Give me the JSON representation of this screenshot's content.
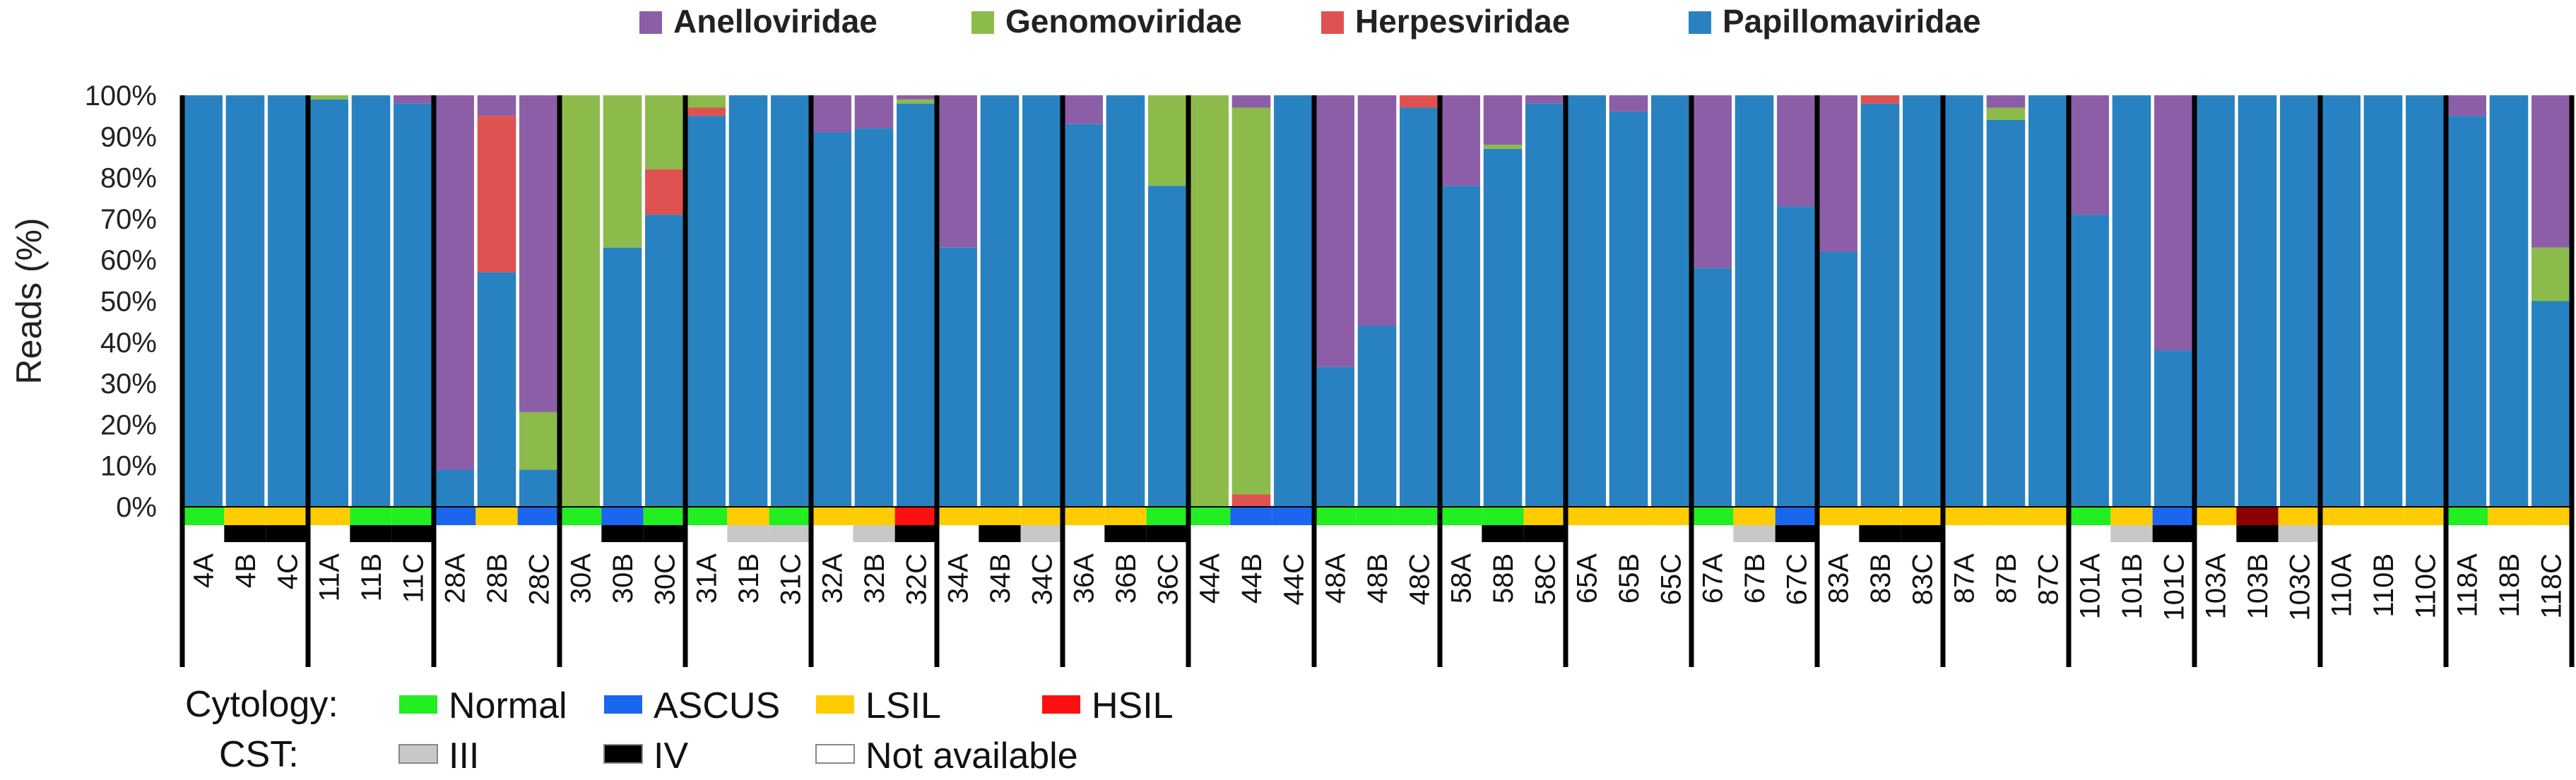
{
  "chart_data": {
    "type": "bar",
    "stacked": true,
    "ylabel": "Reads (%)",
    "ylim": [
      0,
      100
    ],
    "yticks": [
      "0%",
      "10%",
      "20%",
      "30%",
      "40%",
      "50%",
      "60%",
      "70%",
      "80%",
      "90%",
      "100%"
    ],
    "legend": [
      {
        "name": "Anelloviridae",
        "color": "#8d5ea8"
      },
      {
        "name": "Genomoviridae",
        "color": "#8cbb4c"
      },
      {
        "name": "Herpesviridae",
        "color": "#e05252"
      },
      {
        "name": "Papillomaviridae",
        "color": "#2882c1"
      }
    ],
    "categories": [
      "4A",
      "4B",
      "4C",
      "11A",
      "11B",
      "11C",
      "28A",
      "28B",
      "28C",
      "30A",
      "30B",
      "30C",
      "31A",
      "31B",
      "31C",
      "32A",
      "32B",
      "32C",
      "34A",
      "34B",
      "34C",
      "36A",
      "36B",
      "36C",
      "44A",
      "44B",
      "44C",
      "48A",
      "48B",
      "48C",
      "58A",
      "58B",
      "58C",
      "65A",
      "65B",
      "65C",
      "67A",
      "67B",
      "67C",
      "83A",
      "83B",
      "83C",
      "87A",
      "87B",
      "87C",
      "101A",
      "101B",
      "101C",
      "103A",
      "103B",
      "103C",
      "110A",
      "110B",
      "110C",
      "118A",
      "118B",
      "118C"
    ],
    "groups": [
      [
        "4A",
        "4B",
        "4C"
      ],
      [
        "11A",
        "11B",
        "11C"
      ],
      [
        "28A",
        "28B",
        "28C"
      ],
      [
        "30A",
        "30B",
        "30C"
      ],
      [
        "31A",
        "31B",
        "31C"
      ],
      [
        "32A",
        "32B",
        "32C"
      ],
      [
        "34A",
        "34B",
        "34C"
      ],
      [
        "36A",
        "36B",
        "36C"
      ],
      [
        "44A",
        "44B",
        "44C"
      ],
      [
        "48A",
        "48B",
        "48C"
      ],
      [
        "58A",
        "58B",
        "58C"
      ],
      [
        "65A",
        "65B",
        "65C"
      ],
      [
        "67A",
        "67B",
        "67C"
      ],
      [
        "83A",
        "83B",
        "83C"
      ],
      [
        "87A",
        "87B",
        "87C"
      ],
      [
        "101A",
        "101B",
        "101C"
      ],
      [
        "103A",
        "103B",
        "103C"
      ],
      [
        "110A",
        "110B",
        "110C"
      ],
      [
        "118A",
        "118B",
        "118C"
      ]
    ],
    "series": [
      {
        "name": "Papillomaviridae",
        "values": [
          100,
          100,
          100,
          99,
          100,
          98,
          9,
          57,
          9,
          0,
          63,
          71,
          95,
          100,
          100,
          91,
          92,
          98,
          63,
          100,
          100,
          93,
          100,
          78,
          0,
          0,
          100,
          34,
          44,
          97,
          78,
          87,
          98,
          100,
          96,
          100,
          58,
          100,
          73,
          62,
          98,
          100,
          100,
          94,
          100,
          71,
          100,
          38,
          100,
          100,
          100,
          100,
          100,
          100,
          95,
          100,
          50
        ]
      },
      {
        "name": "Herpesviridae",
        "values": [
          0,
          0,
          0,
          0,
          0,
          0,
          0,
          38,
          0,
          0,
          0,
          11,
          2,
          0,
          0,
          0,
          0,
          0,
          0,
          0,
          0,
          0,
          0,
          0,
          0,
          3,
          0,
          0,
          0,
          3,
          0,
          0,
          0,
          0,
          0,
          0,
          0,
          0,
          0,
          0,
          2,
          0,
          0,
          0,
          0,
          0,
          0,
          0,
          0,
          0,
          0,
          0,
          0,
          0,
          0,
          0,
          0
        ]
      },
      {
        "name": "Genomoviridae",
        "values": [
          0,
          0,
          0,
          1,
          0,
          0,
          0,
          0,
          14,
          100,
          37,
          18,
          3,
          0,
          0,
          0,
          0,
          1,
          0,
          0,
          0,
          0,
          0,
          22,
          100,
          94,
          0,
          0,
          0,
          0,
          0,
          1,
          0,
          0,
          0,
          0,
          0,
          0,
          0,
          0,
          0,
          0,
          0,
          3,
          0,
          0,
          0,
          0,
          0,
          0,
          0,
          0,
          0,
          0,
          0,
          0,
          13
        ]
      },
      {
        "name": "Anelloviridae",
        "values": [
          0,
          0,
          0,
          0,
          0,
          2,
          91,
          5,
          77,
          0,
          0,
          0,
          0,
          0,
          0,
          9,
          8,
          1,
          37,
          0,
          0,
          7,
          0,
          0,
          0,
          3,
          0,
          66,
          56,
          0,
          22,
          12,
          2,
          0,
          4,
          0,
          42,
          0,
          27,
          38,
          0,
          0,
          0,
          3,
          0,
          29,
          0,
          62,
          0,
          0,
          0,
          0,
          0,
          0,
          5,
          0,
          37
        ]
      }
    ],
    "cytology": [
      "Normal",
      "LSIL",
      "LSIL",
      "LSIL",
      "Normal",
      "Normal",
      "ASCUS",
      "LSIL",
      "ASCUS",
      "Normal",
      "ASCUS",
      "Normal",
      "Normal",
      "LSIL",
      "Normal",
      "LSIL",
      "LSIL",
      "HSIL",
      "LSIL",
      "LSIL",
      "LSIL",
      "LSIL",
      "LSIL",
      "Normal",
      "Normal",
      "ASCUS",
      "ASCUS",
      "Normal",
      "Normal",
      "Normal",
      "Normal",
      "Normal",
      "LSIL",
      "LSIL",
      "LSIL",
      "LSIL",
      "Normal",
      "LSIL",
      "ASCUS",
      "LSIL",
      "LSIL",
      "LSIL",
      "LSIL",
      "LSIL",
      "LSIL",
      "Normal",
      "LSIL",
      "ASCUS",
      "LSIL",
      "HSIL-dark",
      "LSIL",
      "LSIL",
      "LSIL",
      "LSIL",
      "Normal",
      "LSIL",
      "LSIL"
    ],
    "cst": [
      "Not available",
      "IV",
      "IV",
      "Not available",
      "IV",
      "IV",
      "Not available",
      "Not available",
      "Not available",
      "Not available",
      "IV",
      "IV",
      "Not available",
      "III",
      "III",
      "Not available",
      "III",
      "IV",
      "Not available",
      "IV",
      "III",
      "Not available",
      "IV",
      "IV",
      "Not available",
      "Not available",
      "Not available",
      "Not available",
      "Not available",
      "Not available",
      "Not available",
      "IV",
      "IV",
      "Not available",
      "Not available",
      "Not available",
      "Not available",
      "III",
      "IV",
      "Not available",
      "IV",
      "IV",
      "Not available",
      "Not available",
      "Not available",
      "Not available",
      "III",
      "IV",
      "Not available",
      "IV",
      "III",
      "Not available",
      "Not available",
      "Not available",
      "Not available",
      "Not available",
      "Not available"
    ]
  },
  "legend_bottom": {
    "cytology_label": "Cytology:",
    "cst_label": "CST:",
    "cytology_items": [
      {
        "name": "Normal",
        "color": "#22ee22"
      },
      {
        "name": "ASCUS",
        "color": "#1a66ee"
      },
      {
        "name": "LSIL",
        "color": "#ffcc00"
      },
      {
        "name": "HSIL",
        "color": "#ff1010"
      }
    ],
    "cst_items": [
      {
        "name": "III",
        "color": "#c8c8c8"
      },
      {
        "name": "IV",
        "color": "#000000"
      },
      {
        "name": "Not available",
        "color": "#ffffff"
      }
    ]
  },
  "colors": {
    "HSIL-dark": "#8b0000"
  }
}
